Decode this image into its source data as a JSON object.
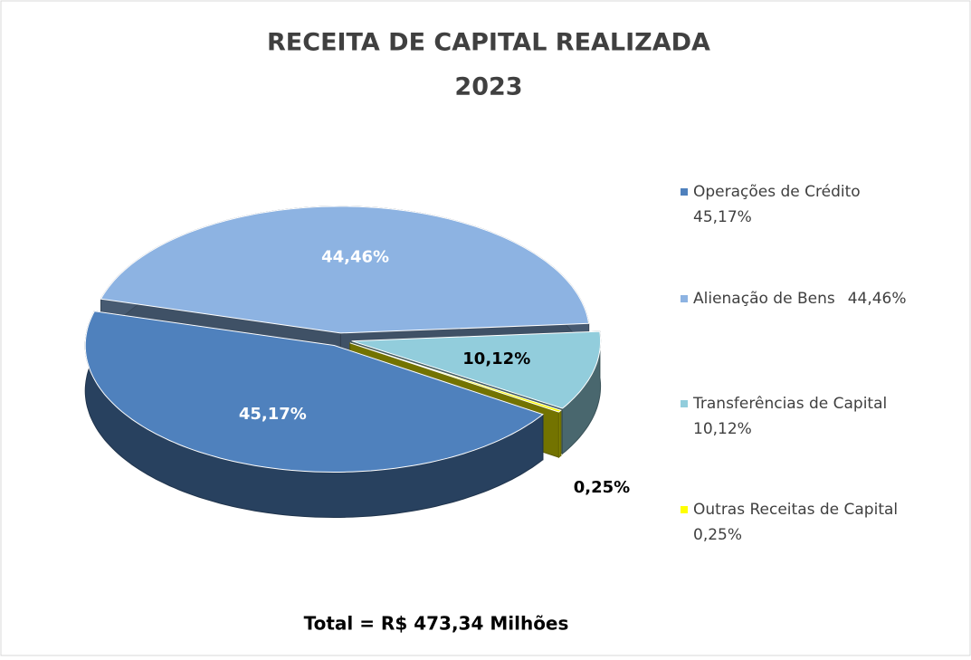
{
  "chart_data": {
    "type": "pie",
    "title": "RECEITA DE CAPITAL REALIZADA",
    "subtitle": "2023",
    "categories": [
      "Operações de Crédito",
      "Alienação de Bens",
      "Transferências de Capital",
      "Outras Receitas de Capital"
    ],
    "values": [
      45.17,
      44.46,
      10.12,
      0.25
    ],
    "value_labels": [
      "45,17%",
      "44,46%",
      "10,12%",
      "0,25%"
    ],
    "colors": [
      "#4f81bd",
      "#8db3e2",
      "#92cddc",
      "#ffff00"
    ],
    "label_colors": [
      "#ffffff",
      "#ffffff",
      "#000000",
      "#000000"
    ],
    "legend": "right",
    "footer": "Total = R$ 473,34 Milhões"
  }
}
